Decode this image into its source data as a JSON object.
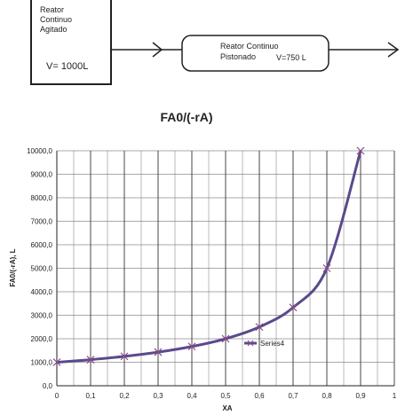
{
  "diagram": {
    "reactor1": {
      "line1": "Reator",
      "line2": "Continuo",
      "line3": "Agitado",
      "volume": "V= 1000L"
    },
    "reactor2": {
      "line1": "Reator Continuo",
      "line2": "Pistonado",
      "volume": "V=750 L"
    }
  },
  "chart_data": {
    "type": "line",
    "title": "FA0/(-rA)",
    "xlabel": "XA",
    "ylabel": "FA0/(-rA), L",
    "xlim": [
      0,
      1
    ],
    "ylim": [
      0,
      10000
    ],
    "x_ticks": [
      "0",
      "0,1",
      "0,2",
      "0,3",
      "0,4",
      "0,5",
      "0,6",
      "0,7",
      "0,8",
      "0,9",
      "1"
    ],
    "y_ticks": [
      "0,0",
      "1000,0",
      "2000,0",
      "3000,0",
      "4000,0",
      "5000,0",
      "6000,0",
      "7000,0",
      "8000,0",
      "9000,0",
      "10000,0"
    ],
    "grid": true,
    "legend_position": "center",
    "series": [
      {
        "name": "Series4",
        "color": "#5b4a8c",
        "marker_color": "#8a4a8a",
        "x": [
          0,
          0.1,
          0.2,
          0.3,
          0.4,
          0.5,
          0.6,
          0.7,
          0.8,
          0.9
        ],
        "y": [
          1000,
          1110,
          1250,
          1430,
          1670,
          2000,
          2500,
          3330,
          5000,
          10000
        ]
      }
    ]
  }
}
